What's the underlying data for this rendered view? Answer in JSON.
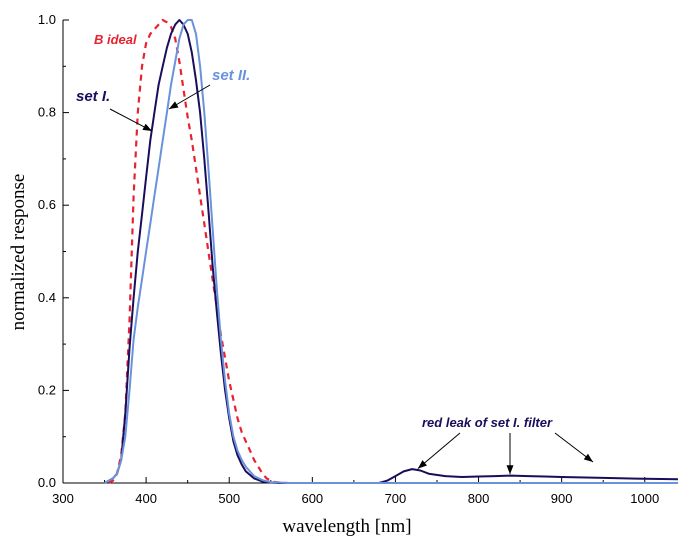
{
  "chart_data": {
    "type": "line",
    "xlabel": "wavelength [nm]",
    "ylabel": "normalized response",
    "xlim": [
      300,
      1040
    ],
    "ylim": [
      0,
      1.0
    ],
    "xticks": [
      "300",
      "400",
      "500",
      "600",
      "700",
      "800",
      "900",
      "1000"
    ],
    "yticks": [
      "0.0",
      "0.2",
      "0.4",
      "0.6",
      "0.8",
      "1.0"
    ],
    "grid": false,
    "series": [
      {
        "name": "set I.",
        "color": "#1a0d5c",
        "style": "solid",
        "x": [
          350,
          360,
          365,
          370,
          375,
          380,
          385,
          390,
          395,
          400,
          405,
          410,
          415,
          420,
          425,
          430,
          435,
          440,
          445,
          450,
          455,
          460,
          465,
          470,
          475,
          480,
          485,
          490,
          495,
          500,
          505,
          510,
          515,
          520,
          530,
          540,
          550,
          560,
          570,
          600,
          650,
          680,
          690,
          700,
          710,
          720,
          730,
          740,
          760,
          780,
          800,
          820,
          840,
          860,
          880,
          900,
          950,
          1000,
          1040
        ],
        "y": [
          0,
          0.01,
          0.02,
          0.05,
          0.15,
          0.29,
          0.4,
          0.5,
          0.58,
          0.66,
          0.74,
          0.8,
          0.86,
          0.9,
          0.94,
          0.97,
          0.99,
          1.0,
          0.99,
          0.97,
          0.93,
          0.87,
          0.8,
          0.7,
          0.59,
          0.47,
          0.37,
          0.28,
          0.2,
          0.14,
          0.09,
          0.06,
          0.04,
          0.025,
          0.01,
          0.003,
          0.001,
          0,
          0,
          0,
          0,
          0,
          0.005,
          0.015,
          0.025,
          0.03,
          0.027,
          0.02,
          0.015,
          0.013,
          0.014,
          0.015,
          0.016,
          0.015,
          0.014,
          0.013,
          0.011,
          0.009,
          0.008
        ]
      },
      {
        "name": "set II.",
        "color": "#6a92dc",
        "style": "solid",
        "x": [
          350,
          360,
          365,
          370,
          375,
          380,
          385,
          390,
          395,
          400,
          405,
          410,
          415,
          420,
          425,
          430,
          435,
          440,
          445,
          450,
          455,
          460,
          465,
          470,
          475,
          480,
          485,
          490,
          495,
          500,
          505,
          510,
          515,
          520,
          530,
          540,
          550,
          560,
          570,
          600,
          700,
          800,
          900,
          1000,
          1040
        ],
        "y": [
          0,
          0.01,
          0.02,
          0.05,
          0.1,
          0.2,
          0.31,
          0.38,
          0.44,
          0.5,
          0.56,
          0.62,
          0.68,
          0.74,
          0.8,
          0.86,
          0.91,
          0.96,
          0.99,
          1.0,
          1.0,
          0.97,
          0.9,
          0.8,
          0.68,
          0.55,
          0.42,
          0.31,
          0.22,
          0.15,
          0.1,
          0.07,
          0.05,
          0.035,
          0.015,
          0.006,
          0.002,
          0.001,
          0,
          0,
          0,
          0,
          0,
          0,
          0
        ]
      },
      {
        "name": "B ideal",
        "color": "#e8232f",
        "style": "dashed",
        "x": [
          355,
          360,
          365,
          370,
          375,
          380,
          385,
          390,
          395,
          400,
          405,
          410,
          415,
          420,
          425,
          430,
          435,
          440,
          445,
          450,
          455,
          460,
          465,
          470,
          475,
          480,
          485,
          490,
          495,
          500,
          505,
          510,
          515,
          520,
          525,
          530,
          535,
          540,
          545,
          550,
          555,
          560,
          570
        ],
        "y": [
          0,
          0.005,
          0.02,
          0.06,
          0.15,
          0.35,
          0.62,
          0.8,
          0.9,
          0.95,
          0.97,
          0.98,
          0.99,
          1.0,
          0.995,
          0.985,
          0.96,
          0.91,
          0.85,
          0.79,
          0.74,
          0.68,
          0.62,
          0.56,
          0.5,
          0.44,
          0.38,
          0.32,
          0.27,
          0.22,
          0.18,
          0.14,
          0.11,
          0.09,
          0.07,
          0.05,
          0.035,
          0.02,
          0.01,
          0.005,
          0.002,
          0.001,
          0
        ]
      }
    ],
    "annotations": [
      {
        "text": "B ideal",
        "color": "#e8232f"
      },
      {
        "text": "set I.",
        "color": "#1a0d5c"
      },
      {
        "text": "set II.",
        "color": "#6a92dc"
      },
      {
        "text": "red leak of set I. filter",
        "color": "#1a0d5c"
      }
    ]
  }
}
